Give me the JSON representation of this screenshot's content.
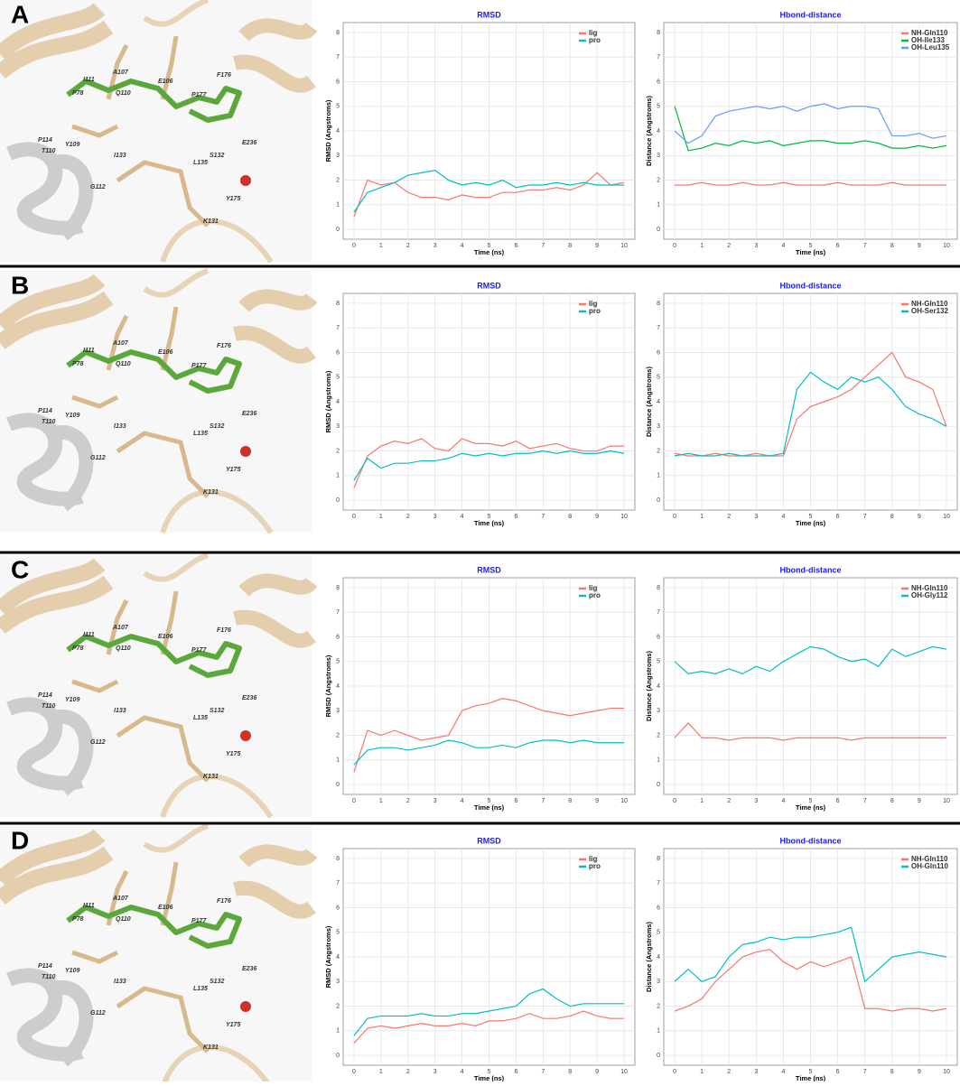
{
  "panels": [
    {
      "label": "A",
      "residue_labels": [
        "A107",
        "E106",
        "Q110",
        "I111",
        "P78",
        "F176",
        "P177",
        "P114",
        "Y109",
        "T110",
        "I133",
        "S132",
        "L135",
        "G112",
        "E236",
        "Y175",
        "K131"
      ]
    },
    {
      "label": "B",
      "residue_labels": [
        "A107",
        "E106",
        "Q110",
        "I111",
        "P78",
        "F176",
        "P177",
        "P114",
        "Y109",
        "T110",
        "I133",
        "S132",
        "L135",
        "G112",
        "E236",
        "Y175",
        "K131"
      ]
    },
    {
      "label": "C",
      "residue_labels": [
        "A107",
        "E106",
        "Q110",
        "I111",
        "P78",
        "F176",
        "P177",
        "P114",
        "Y109",
        "T110",
        "I133",
        "S132",
        "L135",
        "G112",
        "E236",
        "Y175",
        "K131"
      ]
    },
    {
      "label": "D",
      "residue_labels": [
        "A107",
        "E106",
        "Q110",
        "I111",
        "P78",
        "F176",
        "P177",
        "P114",
        "Y109",
        "T110",
        "I133",
        "S132",
        "L135",
        "G112",
        "E236",
        "Y175",
        "K131"
      ]
    }
  ],
  "chart_data": [
    {
      "type": "line",
      "title": "RMSD",
      "xlabel": "Time (ns)",
      "ylabel": "RMSD (Angstroms)",
      "legend": "upper right",
      "grid": true,
      "x": [
        0,
        0.5,
        1,
        1.5,
        2,
        2.5,
        3,
        3.5,
        4,
        4.5,
        5,
        5.5,
        6,
        6.5,
        7,
        7.5,
        8,
        8.5,
        9,
        9.5,
        10
      ],
      "xlim": [
        -0.4,
        10.4
      ],
      "xticks": [
        0,
        1,
        2,
        3,
        4,
        5,
        6,
        7,
        8,
        9,
        10
      ],
      "ylim": [
        -0.4,
        8.4
      ],
      "yticks": [
        0,
        1,
        2,
        3,
        4,
        5,
        6,
        7,
        8
      ],
      "series": [
        {
          "name": "lig",
          "color": "#f8766d",
          "values": [
            0.5,
            2.0,
            1.8,
            1.9,
            1.5,
            1.3,
            1.3,
            1.2,
            1.4,
            1.3,
            1.3,
            1.5,
            1.5,
            1.6,
            1.6,
            1.7,
            1.6,
            1.8,
            2.3,
            1.8,
            1.9
          ]
        },
        {
          "name": "pro",
          "color": "#00bfc4",
          "values": [
            0.7,
            1.5,
            1.7,
            1.9,
            2.2,
            2.3,
            2.4,
            2.0,
            1.8,
            1.9,
            1.8,
            2.0,
            1.7,
            1.8,
            1.8,
            1.9,
            1.8,
            1.9,
            1.8,
            1.8,
            1.8
          ]
        }
      ]
    },
    {
      "type": "line",
      "title": "Hbond-distance",
      "xlabel": "Time (ns)",
      "ylabel": "Distance (Angstroms)",
      "legend": "upper right",
      "grid": true,
      "x": [
        0,
        0.5,
        1,
        1.5,
        2,
        2.5,
        3,
        3.5,
        4,
        4.5,
        5,
        5.5,
        6,
        6.5,
        7,
        7.5,
        8,
        8.5,
        9,
        9.5,
        10
      ],
      "xlim": [
        -0.4,
        10.4
      ],
      "xticks": [
        0,
        1,
        2,
        3,
        4,
        5,
        6,
        7,
        8,
        9,
        10
      ],
      "ylim": [
        -0.4,
        8.4
      ],
      "yticks": [
        0,
        1,
        2,
        3,
        4,
        5,
        6,
        7,
        8
      ],
      "series": [
        {
          "name": "NH-Gln110",
          "color": "#f8766d",
          "values": [
            1.8,
            1.8,
            1.9,
            1.8,
            1.8,
            1.9,
            1.8,
            1.8,
            1.9,
            1.8,
            1.8,
            1.8,
            1.9,
            1.8,
            1.8,
            1.8,
            1.9,
            1.8,
            1.8,
            1.8,
            1.8
          ]
        },
        {
          "name": "OH-Ile133",
          "color": "#00ba38",
          "values": [
            5.0,
            3.2,
            3.3,
            3.5,
            3.4,
            3.6,
            3.5,
            3.6,
            3.4,
            3.5,
            3.6,
            3.6,
            3.5,
            3.5,
            3.6,
            3.5,
            3.3,
            3.3,
            3.4,
            3.3,
            3.4
          ]
        },
        {
          "name": "OH-Leu135",
          "color": "#619cff",
          "values": [
            4.0,
            3.5,
            3.8,
            4.6,
            4.8,
            4.9,
            5.0,
            4.9,
            5.0,
            4.8,
            5.0,
            5.1,
            4.9,
            5.0,
            5.0,
            4.9,
            3.8,
            3.8,
            3.9,
            3.7,
            3.8
          ]
        }
      ]
    },
    {
      "type": "line",
      "title": "RMSD",
      "xlabel": "Time (ns)",
      "ylabel": "RMSD (Angstroms)",
      "legend": "upper right",
      "grid": true,
      "x": [
        0,
        0.5,
        1,
        1.5,
        2,
        2.5,
        3,
        3.5,
        4,
        4.5,
        5,
        5.5,
        6,
        6.5,
        7,
        7.5,
        8,
        8.5,
        9,
        9.5,
        10
      ],
      "xlim": [
        -0.4,
        10.4
      ],
      "xticks": [
        0,
        1,
        2,
        3,
        4,
        5,
        6,
        7,
        8,
        9,
        10
      ],
      "ylim": [
        -0.4,
        8.4
      ],
      "yticks": [
        0,
        1,
        2,
        3,
        4,
        5,
        6,
        7,
        8
      ],
      "series": [
        {
          "name": "lig",
          "color": "#f8766d",
          "values": [
            0.5,
            1.8,
            2.2,
            2.4,
            2.3,
            2.5,
            2.1,
            2.0,
            2.5,
            2.3,
            2.3,
            2.2,
            2.4,
            2.1,
            2.2,
            2.3,
            2.1,
            2.0,
            2.0,
            2.2,
            2.2
          ]
        },
        {
          "name": "pro",
          "color": "#00bfc4",
          "values": [
            0.8,
            1.7,
            1.3,
            1.5,
            1.5,
            1.6,
            1.6,
            1.7,
            1.9,
            1.8,
            1.9,
            1.8,
            1.9,
            1.9,
            2.0,
            1.9,
            2.0,
            1.9,
            1.9,
            2.0,
            1.9
          ]
        }
      ]
    },
    {
      "type": "line",
      "title": "Hbond-distance",
      "xlabel": "Time (ns)",
      "ylabel": "Distance (Angstroms)",
      "legend": "upper right",
      "grid": true,
      "x": [
        0,
        0.5,
        1,
        1.5,
        2,
        2.5,
        3,
        3.5,
        4,
        4.5,
        5,
        5.5,
        6,
        6.5,
        7,
        7.5,
        8,
        8.5,
        9,
        9.5,
        10
      ],
      "xlim": [
        -0.4,
        10.4
      ],
      "xticks": [
        0,
        1,
        2,
        3,
        4,
        5,
        6,
        7,
        8,
        9,
        10
      ],
      "ylim": [
        -0.4,
        8.4
      ],
      "yticks": [
        0,
        1,
        2,
        3,
        4,
        5,
        6,
        7,
        8
      ],
      "series": [
        {
          "name": "NH-Gln110",
          "color": "#f8766d",
          "values": [
            1.9,
            1.8,
            1.8,
            1.9,
            1.8,
            1.8,
            1.9,
            1.8,
            1.8,
            3.3,
            3.8,
            4.0,
            4.2,
            4.5,
            5.0,
            5.5,
            6.0,
            5.0,
            4.8,
            4.5,
            3.0
          ]
        },
        {
          "name": "OH-Ser132",
          "color": "#00bfc4",
          "values": [
            1.8,
            1.9,
            1.8,
            1.8,
            1.9,
            1.8,
            1.8,
            1.8,
            1.9,
            4.5,
            5.2,
            4.8,
            4.5,
            5.0,
            4.8,
            5.0,
            4.5,
            3.8,
            3.5,
            3.3,
            3.0
          ]
        }
      ]
    },
    {
      "type": "line",
      "title": "RMSD",
      "xlabel": "Time (ns)",
      "ylabel": "RMSD (Angstroms)",
      "legend": "upper right",
      "grid": true,
      "x": [
        0,
        0.5,
        1,
        1.5,
        2,
        2.5,
        3,
        3.5,
        4,
        4.5,
        5,
        5.5,
        6,
        6.5,
        7,
        7.5,
        8,
        8.5,
        9,
        9.5,
        10
      ],
      "xlim": [
        -0.4,
        10.4
      ],
      "xticks": [
        0,
        1,
        2,
        3,
        4,
        5,
        6,
        7,
        8,
        9,
        10
      ],
      "ylim": [
        -0.4,
        8.4
      ],
      "yticks": [
        0,
        1,
        2,
        3,
        4,
        5,
        6,
        7,
        8
      ],
      "series": [
        {
          "name": "lig",
          "color": "#f8766d",
          "values": [
            0.5,
            2.2,
            2.0,
            2.2,
            2.0,
            1.8,
            1.9,
            2.0,
            3.0,
            3.2,
            3.3,
            3.5,
            3.4,
            3.2,
            3.0,
            2.9,
            2.8,
            2.9,
            3.0,
            3.1,
            3.1
          ]
        },
        {
          "name": "pro",
          "color": "#00bfc4",
          "values": [
            0.8,
            1.4,
            1.5,
            1.5,
            1.4,
            1.5,
            1.6,
            1.8,
            1.7,
            1.5,
            1.5,
            1.6,
            1.5,
            1.7,
            1.8,
            1.8,
            1.7,
            1.8,
            1.7,
            1.7,
            1.7
          ]
        }
      ]
    },
    {
      "type": "line",
      "title": "Hbond-distance",
      "xlabel": "Time (ns)",
      "ylabel": "Distance (Angstroms)",
      "legend": "upper right",
      "grid": true,
      "x": [
        0,
        0.5,
        1,
        1.5,
        2,
        2.5,
        3,
        3.5,
        4,
        4.5,
        5,
        5.5,
        6,
        6.5,
        7,
        7.5,
        8,
        8.5,
        9,
        9.5,
        10
      ],
      "xlim": [
        -0.4,
        10.4
      ],
      "xticks": [
        0,
        1,
        2,
        3,
        4,
        5,
        6,
        7,
        8,
        9,
        10
      ],
      "ylim": [
        -0.4,
        8.4
      ],
      "yticks": [
        0,
        1,
        2,
        3,
        4,
        5,
        6,
        7,
        8
      ],
      "series": [
        {
          "name": "NH-Gln110",
          "color": "#f8766d",
          "values": [
            1.9,
            2.5,
            1.9,
            1.9,
            1.8,
            1.9,
            1.9,
            1.9,
            1.8,
            1.9,
            1.9,
            1.9,
            1.9,
            1.8,
            1.9,
            1.9,
            1.9,
            1.9,
            1.9,
            1.9,
            1.9
          ]
        },
        {
          "name": "OH-Gly112",
          "color": "#00bfc4",
          "values": [
            5.0,
            4.5,
            4.6,
            4.5,
            4.7,
            4.5,
            4.8,
            4.6,
            5.0,
            5.3,
            5.6,
            5.5,
            5.2,
            5.0,
            5.1,
            4.8,
            5.5,
            5.2,
            5.4,
            5.6,
            5.5
          ]
        }
      ]
    },
    {
      "type": "line",
      "title": "RMSD",
      "xlabel": "Time (ns)",
      "ylabel": "RMSD (Angstroms)",
      "legend": "upper right",
      "grid": true,
      "x": [
        0,
        0.5,
        1,
        1.5,
        2,
        2.5,
        3,
        3.5,
        4,
        4.5,
        5,
        5.5,
        6,
        6.5,
        7,
        7.5,
        8,
        8.5,
        9,
        9.5,
        10
      ],
      "xlim": [
        -0.4,
        10.4
      ],
      "xticks": [
        0,
        1,
        2,
        3,
        4,
        5,
        6,
        7,
        8,
        9,
        10
      ],
      "ylim": [
        -0.4,
        8.4
      ],
      "yticks": [
        0,
        1,
        2,
        3,
        4,
        5,
        6,
        7,
        8
      ],
      "series": [
        {
          "name": "lig",
          "color": "#f8766d",
          "values": [
            0.5,
            1.1,
            1.2,
            1.1,
            1.2,
            1.3,
            1.2,
            1.2,
            1.3,
            1.2,
            1.4,
            1.4,
            1.5,
            1.7,
            1.5,
            1.5,
            1.6,
            1.8,
            1.6,
            1.5,
            1.5
          ]
        },
        {
          "name": "pro",
          "color": "#00bfc4",
          "values": [
            0.8,
            1.5,
            1.6,
            1.6,
            1.6,
            1.7,
            1.6,
            1.6,
            1.7,
            1.7,
            1.8,
            1.9,
            2.0,
            2.5,
            2.7,
            2.3,
            2.0,
            2.1,
            2.1,
            2.1,
            2.1
          ]
        }
      ]
    },
    {
      "type": "line",
      "title": "Hbond-distance",
      "xlabel": "Time (ns)",
      "ylabel": "Distance (Angstroms)",
      "legend": "upper right",
      "grid": true,
      "x": [
        0,
        0.5,
        1,
        1.5,
        2,
        2.5,
        3,
        3.5,
        4,
        4.5,
        5,
        5.5,
        6,
        6.5,
        7,
        7.5,
        8,
        8.5,
        9,
        9.5,
        10
      ],
      "xlim": [
        -0.4,
        10.4
      ],
      "xticks": [
        0,
        1,
        2,
        3,
        4,
        5,
        6,
        7,
        8,
        9,
        10
      ],
      "ylim": [
        -0.4,
        8.4
      ],
      "yticks": [
        0,
        1,
        2,
        3,
        4,
        5,
        6,
        7,
        8
      ],
      "series": [
        {
          "name": "NH-Gln110",
          "color": "#f8766d",
          "values": [
            1.8,
            2.0,
            2.3,
            3.0,
            3.5,
            4.0,
            4.2,
            4.3,
            3.8,
            3.5,
            3.8,
            3.6,
            3.8,
            4.0,
            1.9,
            1.9,
            1.8,
            1.9,
            1.9,
            1.8,
            1.9
          ]
        },
        {
          "name": "OH-Gln110",
          "color": "#00bfc4",
          "values": [
            3.0,
            3.5,
            3.0,
            3.2,
            4.0,
            4.5,
            4.6,
            4.8,
            4.7,
            4.8,
            4.8,
            4.9,
            5.0,
            5.2,
            3.0,
            3.5,
            4.0,
            4.1,
            4.2,
            4.1,
            4.0
          ]
        }
      ]
    }
  ]
}
